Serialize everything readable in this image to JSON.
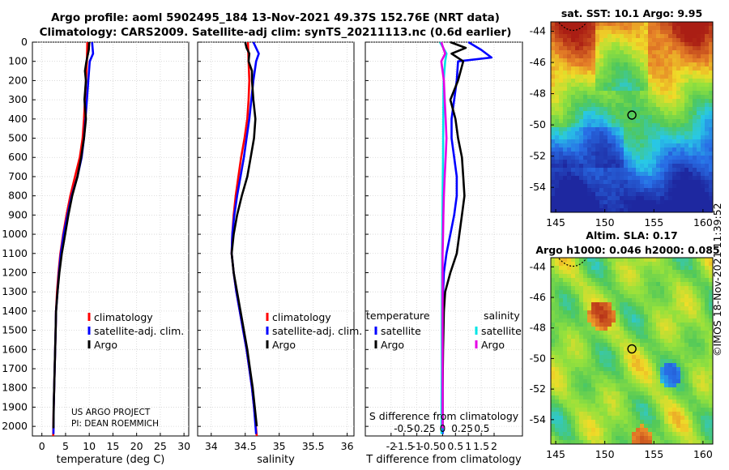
{
  "header": {
    "line1": "Argo profile: aoml 5902495_184 13-Nov-2021 49.37S 152.76E (NRT data)",
    "line2": "Climatology: CARS2009. Satellite-adj clim: synTS_20211113.nc (0.6d earlier)"
  },
  "credit": "©IMOS 18-Nov-2021 11:39:52",
  "colors": {
    "climatology": "#ff0000",
    "satellite_adj": "#0000ff",
    "argo": "#000000",
    "sat_temp": "#00e5e5",
    "sat_sal": "#e600e6"
  },
  "chart_data": [
    {
      "type": "line",
      "panel": "temperature",
      "xlabel": "temperature (deg C)",
      "ylabel": "",
      "xlim": [
        -2,
        31
      ],
      "ylim": [
        0,
        2050
      ],
      "xticks": [
        "0",
        "5",
        "10",
        "15",
        "20",
        "25",
        "30"
      ],
      "yticks": [
        "0",
        "100",
        "200",
        "300",
        "400",
        "500",
        "600",
        "700",
        "800",
        "900",
        "1000",
        "1100",
        "1200",
        "1300",
        "1400",
        "1500",
        "1600",
        "1700",
        "1800",
        "1900",
        "2000"
      ],
      "legend": [
        "climatology",
        "satellite-adj. clim.",
        "Argo"
      ],
      "annotation": [
        "US ARGO PROJECT",
        "PI: DEAN ROEMMICH"
      ],
      "series": [
        {
          "name": "climatology",
          "color": "#ff0000",
          "points": [
            [
              9.6,
              0
            ],
            [
              9.5,
              100
            ],
            [
              9.3,
              200
            ],
            [
              9.1,
              300
            ],
            [
              8.9,
              400
            ],
            [
              8.6,
              500
            ],
            [
              8.0,
              600
            ],
            [
              7.0,
              700
            ],
            [
              6.0,
              800
            ],
            [
              5.2,
              900
            ],
            [
              4.5,
              1000
            ],
            [
              3.9,
              1100
            ],
            [
              3.5,
              1200
            ],
            [
              3.2,
              1300
            ],
            [
              3.0,
              1400
            ],
            [
              2.9,
              1500
            ],
            [
              2.8,
              1600
            ],
            [
              2.7,
              1700
            ],
            [
              2.6,
              1800
            ],
            [
              2.5,
              1900
            ],
            [
              2.4,
              2050
            ]
          ]
        },
        {
          "name": "satellite-adj. clim.",
          "color": "#0000ff",
          "points": [
            [
              10.6,
              0
            ],
            [
              10.8,
              60
            ],
            [
              10.1,
              100
            ],
            [
              9.8,
              200
            ],
            [
              9.5,
              300
            ],
            [
              9.2,
              400
            ],
            [
              8.9,
              500
            ],
            [
              8.4,
              600
            ],
            [
              7.5,
              700
            ],
            [
              6.3,
              800
            ],
            [
              5.4,
              900
            ],
            [
              4.6,
              1000
            ],
            [
              4.0,
              1100
            ],
            [
              3.6,
              1200
            ],
            [
              3.3,
              1300
            ],
            [
              3.0,
              1400
            ],
            [
              2.9,
              1500
            ],
            [
              2.8,
              1600
            ],
            [
              2.7,
              1700
            ],
            [
              2.6,
              1800
            ],
            [
              2.5,
              1900
            ],
            [
              2.45,
              2040
            ]
          ]
        },
        {
          "name": "Argo",
          "color": "#000000",
          "points": [
            [
              10.0,
              0
            ],
            [
              9.9,
              40
            ],
            [
              9.4,
              100
            ],
            [
              9.1,
              150
            ],
            [
              9.3,
              200
            ],
            [
              9.0,
              300
            ],
            [
              9.3,
              400
            ],
            [
              8.9,
              500
            ],
            [
              8.3,
              600
            ],
            [
              7.5,
              700
            ],
            [
              6.4,
              800
            ],
            [
              5.6,
              900
            ],
            [
              4.9,
              1000
            ],
            [
              4.2,
              1100
            ],
            [
              3.7,
              1200
            ],
            [
              3.3,
              1300
            ],
            [
              3.0,
              1400
            ],
            [
              2.9,
              1500
            ],
            [
              2.8,
              1600
            ],
            [
              2.7,
              1700
            ],
            [
              2.6,
              1800
            ],
            [
              2.5,
              1900
            ],
            [
              2.45,
              2010
            ]
          ]
        }
      ]
    },
    {
      "type": "line",
      "panel": "salinity",
      "xlabel": "salinity",
      "xlim": [
        33.8,
        36.1
      ],
      "ylim": [
        0,
        2050
      ],
      "xticks": [
        "34",
        "34.5",
        "35",
        "35.5",
        "36"
      ],
      "legend": [
        "climatology",
        "satellite-adj. clim.",
        "Argo"
      ],
      "series": [
        {
          "name": "climatology",
          "color": "#ff0000",
          "points": [
            [
              34.54,
              0
            ],
            [
              34.55,
              100
            ],
            [
              34.56,
              200
            ],
            [
              34.55,
              300
            ],
            [
              34.53,
              400
            ],
            [
              34.49,
              500
            ],
            [
              34.44,
              600
            ],
            [
              34.4,
              700
            ],
            [
              34.36,
              800
            ],
            [
              34.33,
              900
            ],
            [
              34.31,
              1000
            ],
            [
              34.3,
              1100
            ],
            [
              34.33,
              1200
            ],
            [
              34.37,
              1300
            ],
            [
              34.42,
              1400
            ],
            [
              34.47,
              1500
            ],
            [
              34.52,
              1600
            ],
            [
              34.56,
              1700
            ],
            [
              34.6,
              1800
            ],
            [
              34.63,
              1900
            ],
            [
              34.67,
              2050
            ]
          ]
        },
        {
          "name": "satellite-adj. clim.",
          "color": "#0000ff",
          "points": [
            [
              34.62,
              0
            ],
            [
              34.7,
              60
            ],
            [
              34.66,
              100
            ],
            [
              34.62,
              200
            ],
            [
              34.59,
              300
            ],
            [
              34.56,
              400
            ],
            [
              34.52,
              500
            ],
            [
              34.48,
              600
            ],
            [
              34.43,
              700
            ],
            [
              34.38,
              800
            ],
            [
              34.34,
              900
            ],
            [
              34.31,
              1000
            ],
            [
              34.3,
              1100
            ],
            [
              34.33,
              1200
            ],
            [
              34.37,
              1300
            ],
            [
              34.42,
              1400
            ],
            [
              34.47,
              1500
            ],
            [
              34.52,
              1600
            ],
            [
              34.56,
              1700
            ],
            [
              34.6,
              1800
            ],
            [
              34.63,
              1900
            ],
            [
              34.66,
              2040
            ]
          ]
        },
        {
          "name": "Argo",
          "color": "#000000",
          "points": [
            [
              34.5,
              0
            ],
            [
              34.52,
              30
            ],
            [
              34.56,
              60
            ],
            [
              34.55,
              100
            ],
            [
              34.6,
              150
            ],
            [
              34.6,
              200
            ],
            [
              34.62,
              300
            ],
            [
              34.65,
              400
            ],
            [
              34.63,
              500
            ],
            [
              34.58,
              600
            ],
            [
              34.53,
              700
            ],
            [
              34.45,
              800
            ],
            [
              34.38,
              900
            ],
            [
              34.33,
              1000
            ],
            [
              34.3,
              1100
            ],
            [
              34.33,
              1200
            ],
            [
              34.38,
              1300
            ],
            [
              34.43,
              1400
            ],
            [
              34.48,
              1500
            ],
            [
              34.53,
              1600
            ],
            [
              34.57,
              1700
            ],
            [
              34.61,
              1800
            ],
            [
              34.64,
              1900
            ],
            [
              34.67,
              2000
            ]
          ]
        }
      ]
    },
    {
      "type": "line",
      "panel": "difference",
      "xlabel": "T difference from climatology",
      "xlabel_top": "S difference from climatology",
      "xlim": [
        -3,
        3.1
      ],
      "ylim": [
        0,
        2050
      ],
      "xticks": [
        "-2",
        "-1.5",
        "-1",
        "-0.5",
        "0",
        "0.5",
        "1",
        "1.5",
        "2"
      ],
      "sticks": [
        "-0.5",
        "-0.25",
        "0",
        "0.25",
        "0.5"
      ],
      "legend_left_title": "temperature",
      "legend_right_title": "salinity",
      "legend_left": [
        "satellite",
        "Argo"
      ],
      "legend_right": [
        "satellite",
        "Argo"
      ],
      "series": [
        {
          "name": "temperature satellite",
          "color": "#0000ff",
          "points": [
            [
              1.0,
              0
            ],
            [
              1.5,
              40
            ],
            [
              1.9,
              80
            ],
            [
              0.6,
              100
            ],
            [
              0.55,
              200
            ],
            [
              0.45,
              300
            ],
            [
              0.35,
              400
            ],
            [
              0.35,
              500
            ],
            [
              0.45,
              600
            ],
            [
              0.55,
              700
            ],
            [
              0.55,
              800
            ],
            [
              0.45,
              900
            ],
            [
              0.3,
              1000
            ],
            [
              0.15,
              1100
            ],
            [
              0.05,
              1200
            ],
            [
              0.02,
              1300
            ],
            [
              0,
              1500
            ],
            [
              0,
              1700
            ],
            [
              0,
              1900
            ],
            [
              0,
              2040
            ]
          ]
        },
        {
          "name": "temperature Argo",
          "color": "#000000",
          "points": [
            [
              0.3,
              0
            ],
            [
              0.9,
              30
            ],
            [
              0.35,
              60
            ],
            [
              0.8,
              100
            ],
            [
              0.6,
              200
            ],
            [
              0.3,
              300
            ],
            [
              0.5,
              400
            ],
            [
              0.6,
              500
            ],
            [
              0.75,
              600
            ],
            [
              0.8,
              700
            ],
            [
              0.85,
              800
            ],
            [
              0.75,
              900
            ],
            [
              0.65,
              1000
            ],
            [
              0.55,
              1100
            ],
            [
              0.3,
              1200
            ],
            [
              0.1,
              1300
            ],
            [
              0.05,
              1400
            ],
            [
              0.02,
              1600
            ],
            [
              0,
              1800
            ],
            [
              0,
              2010
            ]
          ]
        },
        {
          "name": "salinity satellite",
          "color": "#00e5e5",
          "points": [
            [
              -0.1,
              0
            ],
            [
              0.15,
              60
            ],
            [
              0.1,
              100
            ],
            [
              0.04,
              200
            ],
            [
              0.03,
              300
            ],
            [
              0.02,
              600
            ],
            [
              0.0,
              800
            ],
            [
              -0.01,
              1000
            ],
            [
              -0.02,
              1200
            ],
            [
              -0.03,
              1500
            ],
            [
              -0.03,
              1700
            ],
            [
              -0.04,
              1900
            ],
            [
              -0.04,
              2040
            ]
          ]
        },
        {
          "name": "salinity Argo",
          "color": "#e600e6",
          "points": [
            [
              -0.05,
              0
            ],
            [
              0.1,
              60
            ],
            [
              -0.05,
              100
            ],
            [
              0.05,
              200
            ],
            [
              0.08,
              300
            ],
            [
              0.12,
              400
            ],
            [
              0.15,
              500
            ],
            [
              0.12,
              600
            ],
            [
              0.08,
              700
            ],
            [
              0.05,
              800
            ],
            [
              0.03,
              900
            ],
            [
              0.02,
              1000
            ],
            [
              0,
              1100
            ],
            [
              0,
              1300
            ],
            [
              0,
              1600
            ],
            [
              0,
              1800
            ],
            [
              0,
              2010
            ]
          ]
        }
      ]
    },
    {
      "type": "heatmap",
      "panel": "sat-sst",
      "title": "sat. SST: 10.1 Argo: 9.95",
      "xticks": [
        "145",
        "150",
        "155",
        "160"
      ],
      "yticks": [
        "-44",
        "-46",
        "-48",
        "-50",
        "-52",
        "-54"
      ],
      "xlim": [
        144.5,
        161
      ],
      "ylim": [
        -55.6,
        -43.4
      ],
      "float_position": [
        152.76,
        -49.37
      ]
    },
    {
      "type": "heatmap",
      "panel": "altim-sla",
      "title": "Altim. SLA: 0.17",
      "subtitle": "Argo h1000: 0.046 h2000: 0.085",
      "xticks": [
        "145",
        "150",
        "155",
        "160"
      ],
      "yticks": [
        "-44",
        "-46",
        "-48",
        "-50",
        "-52",
        "-54"
      ],
      "xlim": [
        144.5,
        161
      ],
      "ylim": [
        -55.6,
        -43.4
      ],
      "float_position": [
        152.76,
        -49.37
      ]
    }
  ]
}
